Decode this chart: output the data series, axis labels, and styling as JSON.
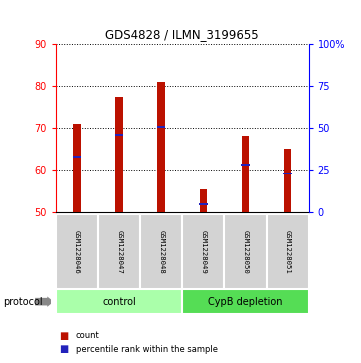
{
  "title": "GDS4828 / ILMN_3199655",
  "samples": [
    "GSM1228046",
    "GSM1228047",
    "GSM1228048",
    "GSM1228049",
    "GSM1228050",
    "GSM1228051"
  ],
  "counts": [
    71.0,
    77.3,
    81.0,
    55.5,
    68.0,
    65.0
  ],
  "percentiles_pct": [
    33.0,
    46.0,
    50.5,
    5.0,
    28.0,
    23.0
  ],
  "baseline": 50,
  "ylim": [
    50,
    90
  ],
  "yticks_left": [
    50,
    60,
    70,
    80,
    90
  ],
  "yticks_right": [
    0,
    25,
    50,
    75,
    100
  ],
  "right_ylim": [
    0,
    100
  ],
  "bar_color": "#BB1100",
  "blue_color": "#2222BB",
  "groups": [
    {
      "label": "control",
      "indices": [
        0,
        1,
        2
      ],
      "color": "#AAFFAA"
    },
    {
      "label": "CypB depletion",
      "indices": [
        3,
        4,
        5
      ],
      "color": "#55DD55"
    }
  ],
  "protocol_label": "protocol",
  "legend_count": "count",
  "legend_percentile": "percentile rank within the sample",
  "bar_width": 0.18
}
